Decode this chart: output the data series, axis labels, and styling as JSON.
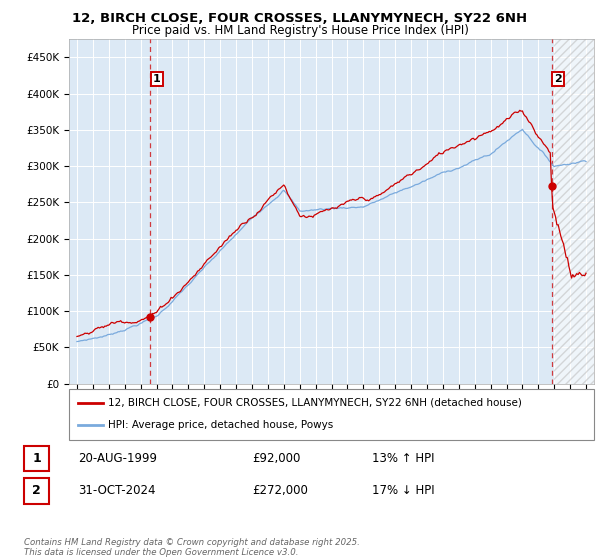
{
  "title_line1": "12, BIRCH CLOSE, FOUR CROSSES, LLANYMYNECH, SY22 6NH",
  "title_line2": "Price paid vs. HM Land Registry's House Price Index (HPI)",
  "y_ticks": [
    0,
    50000,
    100000,
    150000,
    200000,
    250000,
    300000,
    350000,
    400000,
    450000
  ],
  "ylim": [
    0,
    475000
  ],
  "xlim_start": 1994.5,
  "xlim_end": 2027.5,
  "plot_bg_color": "#dce9f5",
  "background_color": "#ffffff",
  "grid_color": "#ffffff",
  "hpi_line_color": "#7aaadd",
  "price_line_color": "#cc0000",
  "vline_color": "#cc0000",
  "purchase1_year": 1999.62,
  "purchase1_price": 92000,
  "purchase2_year": 2024.83,
  "purchase2_price": 272000,
  "hatch_start": 2025.0,
  "legend_line1": "12, BIRCH CLOSE, FOUR CROSSES, LLANYMYNECH, SY22 6NH (detached house)",
  "legend_line2": "HPI: Average price, detached house, Powys",
  "table_row1_date": "20-AUG-1999",
  "table_row1_price": "£92,000",
  "table_row1_hpi": "13% ↑ HPI",
  "table_row2_date": "31-OCT-2024",
  "table_row2_price": "£272,000",
  "table_row2_hpi": "17% ↓ HPI",
  "footer": "Contains HM Land Registry data © Crown copyright and database right 2025.\nThis data is licensed under the Open Government Licence v3.0."
}
